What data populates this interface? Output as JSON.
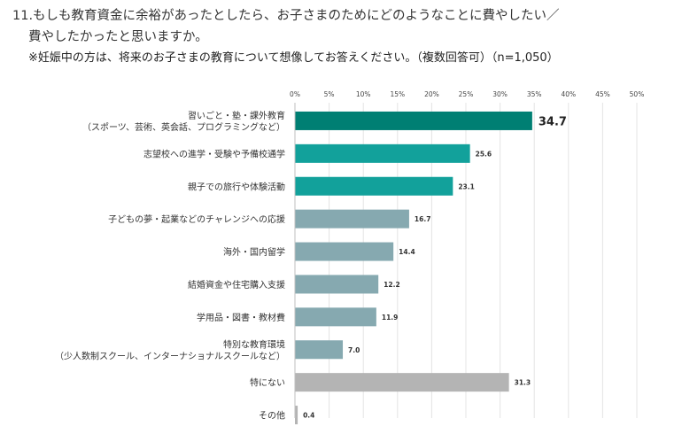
{
  "question": {
    "line1": "11.もしも教育資金に余裕があったとしたら、お子さまのためにどのようなことに費やしたい／",
    "line2": "費やしたかったと思いますか。",
    "note": "※妊娠中の方は、将来のお子さまの教育について想像してお答えください。（複数回答可）（n=1,050）"
  },
  "chart_data": {
    "type": "bar",
    "orientation": "horizontal",
    "xlim": [
      0,
      50
    ],
    "ticks": [
      "0%",
      "5%",
      "10%",
      "15%",
      "20%",
      "25%",
      "30%",
      "35%",
      "40%",
      "45%",
      "50%"
    ],
    "tick_values": [
      0,
      5,
      10,
      15,
      20,
      25,
      30,
      35,
      40,
      45,
      50
    ],
    "grid": true,
    "categories": [
      [
        "習いごと・塾・課外教育",
        "（スポーツ、芸術、英会話、プログラミングなど）"
      ],
      [
        "志望校への進学・受験や予備校通学"
      ],
      [
        "親子での旅行や体験活動"
      ],
      [
        "子どもの夢・起業などのチャレンジへの応援"
      ],
      [
        "海外・国内留学"
      ],
      [
        "結婚資金や住宅購入支援"
      ],
      [
        "学用品・図書・教材費"
      ],
      [
        "特別な教育環境",
        "（少人数制スクール、インターナショナルスクールなど）"
      ],
      [
        "特にない"
      ],
      [
        "その他"
      ]
    ],
    "values": [
      34.7,
      25.6,
      23.1,
      16.7,
      14.4,
      12.2,
      11.9,
      7.0,
      31.3,
      0.4
    ],
    "value_labels": [
      "34.7",
      "25.6",
      "23.1",
      "16.7",
      "14.4",
      "12.2",
      "11.9",
      "7.0",
      "31.3",
      "0.4"
    ],
    "colors": [
      "#007f73",
      "#12a19b",
      "#12a19b",
      "#86a9b0",
      "#86a9b0",
      "#86a9b0",
      "#86a9b0",
      "#86a9b0",
      "#b4b4b4",
      "#b4b4b4"
    ]
  }
}
